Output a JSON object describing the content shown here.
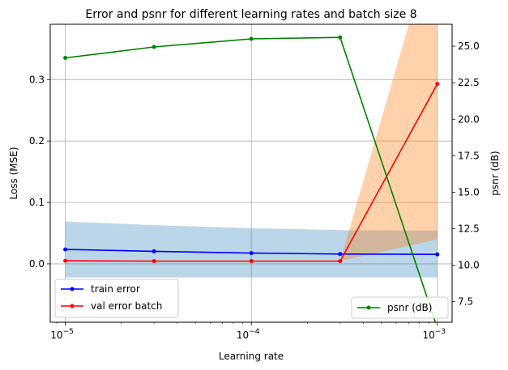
{
  "chart_data": {
    "type": "line",
    "title": "Error and psnr for different learning rates and batch size 8",
    "xlabel": "Learning rate",
    "ylabel_left": "Loss (MSE)",
    "ylabel_right": "psnr (dB)",
    "x_scale": "log",
    "x": [
      1e-05,
      3e-05,
      0.0001,
      0.0003,
      0.001
    ],
    "xlim": [
      8.3e-06,
      0.0012
    ],
    "x_ticks": [
      {
        "value": 1e-05,
        "base": "10",
        "exp": "−5"
      },
      {
        "value": 0.0001,
        "base": "10",
        "exp": "−4"
      },
      {
        "value": 0.001,
        "base": "10",
        "exp": "−3"
      }
    ],
    "ylim_left": [
      -0.095,
      0.39
    ],
    "yticks_left": [
      "0.0",
      "0.1",
      "0.2",
      "0.3"
    ],
    "yticks_left_values": [
      0,
      0.1,
      0.2,
      0.3
    ],
    "ylim_right": [
      6.1,
      26.5
    ],
    "yticks_right": [
      "7.5",
      "10.0",
      "12.5",
      "15.0",
      "17.5",
      "20.0",
      "22.5",
      "25.0"
    ],
    "yticks_right_values": [
      7.5,
      10,
      12.5,
      15,
      17.5,
      20,
      22.5,
      25
    ],
    "grid": true,
    "series": [
      {
        "name": "train error",
        "axis": "left",
        "color": "#0000ff",
        "values": [
          0.0235,
          0.0205,
          0.0175,
          0.016,
          0.0155
        ],
        "band_lower": [
          -0.022,
          -0.022,
          -0.022,
          -0.022,
          -0.022
        ],
        "band_upper": [
          0.069,
          0.063,
          0.058,
          0.055,
          0.054
        ],
        "band_color": "#1f77b4"
      },
      {
        "name": "val error batch",
        "axis": "left",
        "color": "#ff0000",
        "values": [
          0.005,
          0.0045,
          0.0045,
          0.0045,
          0.293
        ],
        "band_lower": [
          0.005,
          0.0045,
          0.0045,
          0.0045,
          0.04
        ],
        "band_upper": [
          0.005,
          0.0045,
          0.0045,
          0.0045,
          0.55
        ],
        "band_color": "#ff7f0e"
      },
      {
        "name": "psnr (dB)",
        "axis": "right",
        "color": "#008000",
        "values": [
          24.2,
          24.95,
          25.5,
          25.6,
          5.7
        ]
      }
    ],
    "legend_left_position": "lower left",
    "legend_right_position": "lower right"
  }
}
